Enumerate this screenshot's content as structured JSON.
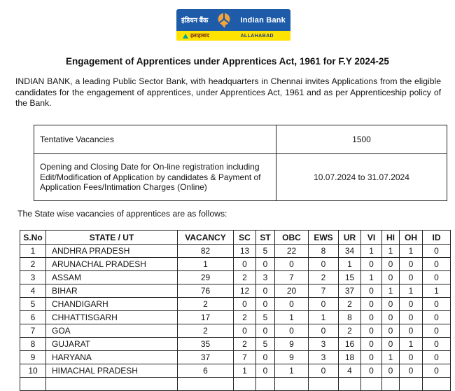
{
  "logo": {
    "hindi_name": "इंडियन बैंक",
    "english_name": "Indian Bank",
    "strip_hindi": "इलाहाबाद",
    "strip_english": "ALLAHABAD",
    "colors": {
      "blue": "#1E5CA9",
      "yellow": "#FFE300",
      "orange": "#F2A33C",
      "teal": "#00A79D"
    }
  },
  "title": "Engagement of Apprentices under Apprentices Act, 1961 for F.Y 2024-25",
  "intro": "INDIAN BANK, a leading Public Sector Bank, with headquarters in Chennai invites Applications from the eligible candidates for the engagement of apprentices, under Apprentices Act, 1961 and as per Apprenticeship policy of the Bank.",
  "summary_table": {
    "rows": [
      {
        "label": "Tentative Vacancies",
        "value": "1500"
      },
      {
        "label": "Opening and Closing Date for On-line registration including Edit/Modification of Application by candidates & Payment of Application Fees/Intimation Charges (Online)",
        "value": "10.07.2024 to 31.07.2024"
      }
    ]
  },
  "state_note": "The State wise vacancies of apprentices are as follows:",
  "vacancy_table": {
    "headers": [
      "S.No",
      "STATE / UT",
      "VACANCY",
      "SC",
      "ST",
      "OBC",
      "EWS",
      "UR",
      "VI",
      "HI",
      "OH",
      "ID"
    ],
    "rows": [
      [
        "1",
        "ANDHRA PRADESH",
        "82",
        "13",
        "5",
        "22",
        "8",
        "34",
        "1",
        "1",
        "1",
        "0"
      ],
      [
        "2",
        "ARUNACHAL PRADESH",
        "1",
        "0",
        "0",
        "0",
        "0",
        "1",
        "0",
        "0",
        "0",
        "0"
      ],
      [
        "3",
        "ASSAM",
        "29",
        "2",
        "3",
        "7",
        "2",
        "15",
        "1",
        "0",
        "0",
        "0"
      ],
      [
        "4",
        "BIHAR",
        "76",
        "12",
        "0",
        "20",
        "7",
        "37",
        "0",
        "1",
        "1",
        "1"
      ],
      [
        "5",
        "CHANDIGARH",
        "2",
        "0",
        "0",
        "0",
        "0",
        "2",
        "0",
        "0",
        "0",
        "0"
      ],
      [
        "6",
        "CHHATTISGARH",
        "17",
        "2",
        "5",
        "1",
        "1",
        "8",
        "0",
        "0",
        "0",
        "0"
      ],
      [
        "7",
        "GOA",
        "2",
        "0",
        "0",
        "0",
        "0",
        "2",
        "0",
        "0",
        "0",
        "0"
      ],
      [
        "8",
        "GUJARAT",
        "35",
        "2",
        "5",
        "9",
        "3",
        "16",
        "0",
        "0",
        "1",
        "0"
      ],
      [
        "9",
        "HARYANA",
        "37",
        "7",
        "0",
        "9",
        "3",
        "18",
        "0",
        "1",
        "0",
        "0"
      ],
      [
        "10",
        "HIMACHAL PRADESH",
        "6",
        "1",
        "0",
        "1",
        "0",
        "4",
        "0",
        "0",
        "0",
        "0"
      ]
    ]
  }
}
